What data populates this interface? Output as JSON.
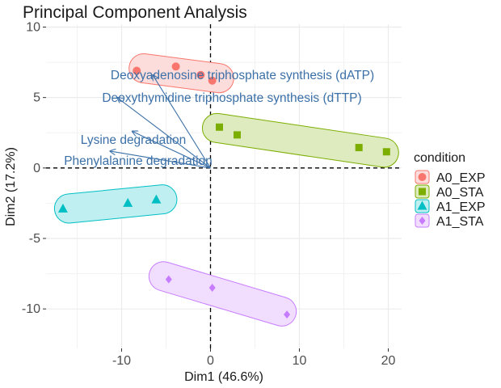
{
  "chart_data": {
    "type": "scatter",
    "title": "Principal Component Analysis",
    "xlabel": "Dim1 (46.6%)",
    "ylabel": "Dim2 (17.2%)",
    "xlim": [
      -18.5,
      21.5
    ],
    "ylim": [
      -12.8,
      10.2
    ],
    "x_ticks": [
      -10,
      0,
      10,
      20
    ],
    "y_ticks": [
      -10,
      -5,
      0,
      5,
      10
    ],
    "x_tick_labels": [
      "-10",
      "0",
      "10",
      "20"
    ],
    "y_tick_labels": [
      "-10",
      "-5",
      "0",
      "5",
      "10"
    ],
    "grid": true,
    "legend": {
      "title": "condition",
      "position": "right"
    },
    "series": [
      {
        "name": "A0_EXP",
        "marker": "circle",
        "color": "#f8766d",
        "points": [
          [
            -8.3,
            6.9
          ],
          [
            -3.9,
            7.2
          ],
          [
            -1.1,
            6.6
          ],
          [
            0.2,
            6.2
          ]
        ]
      },
      {
        "name": "A0_STA",
        "marker": "square",
        "color": "#7cae00",
        "points": [
          [
            1.0,
            2.9
          ],
          [
            3.0,
            2.35
          ],
          [
            16.7,
            1.45
          ],
          [
            19.8,
            1.15
          ]
        ]
      },
      {
        "name": "A1_EXP",
        "marker": "triangle",
        "color": "#00bfc4",
        "points": [
          [
            -16.6,
            -2.9
          ],
          [
            -9.3,
            -2.5
          ],
          [
            -6.1,
            -2.25
          ]
        ]
      },
      {
        "name": "A1_STA",
        "marker": "diamond",
        "color": "#c77cff",
        "points": [
          [
            -4.7,
            -7.9
          ],
          [
            0.2,
            -8.5
          ],
          [
            8.6,
            -10.4
          ]
        ]
      }
    ],
    "variables": [
      {
        "label": "Deoxyadenosine triphosphate synthesis (dATP)",
        "x": -6.5,
        "y": 6.6
      },
      {
        "label": "Deoxythymidine triphosphate synthesis (dTTP)",
        "x": -10.5,
        "y": 5.0
      },
      {
        "label": "Lysine degradation",
        "x": -8.8,
        "y": 2.6
      },
      {
        "label": "Phenylalanine degradation",
        "x": -11.3,
        "y": 1.2
      }
    ],
    "reference_lines": {
      "x": 0,
      "y": 0,
      "style": "dashed"
    }
  }
}
